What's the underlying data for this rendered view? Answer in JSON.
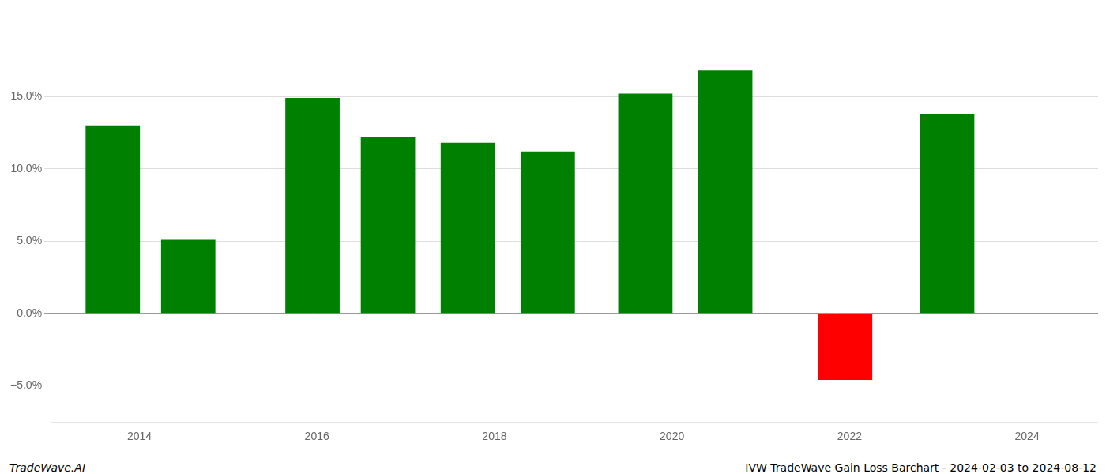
{
  "chart_data": {
    "type": "bar",
    "x": [
      2013.7,
      2014.55,
      2015.95,
      2016.8,
      2017.7,
      2018.6,
      2019.7,
      2020.6,
      2021.95,
      2023.1
    ],
    "values": [
      0.13,
      0.051,
      0.149,
      0.122,
      0.118,
      0.112,
      0.152,
      0.168,
      -0.046,
      0.138
    ],
    "colors": [
      "#008000",
      "#008000",
      "#008000",
      "#008000",
      "#008000",
      "#008000",
      "#008000",
      "#008000",
      "#ff0000",
      "#008000"
    ],
    "xlim": [
      2013,
      2024.8
    ],
    "xticks": [
      2014,
      2016,
      2018,
      2020,
      2022,
      2024
    ],
    "ylim": [
      -0.075,
      0.205
    ],
    "yticks": [
      {
        "value": -0.05,
        "label": "−5.0%"
      },
      {
        "value": 0.0,
        "label": "0.0%"
      },
      {
        "value": 0.05,
        "label": "5.0%"
      },
      {
        "value": 0.1,
        "label": "10.0%"
      },
      {
        "value": 0.15,
        "label": "15.0%"
      }
    ],
    "grid": true,
    "annotations": [
      "TradeWave.AI",
      "IVW TradeWave Gain Loss Barchart - 2024-02-03 to 2024-08-12"
    ]
  }
}
